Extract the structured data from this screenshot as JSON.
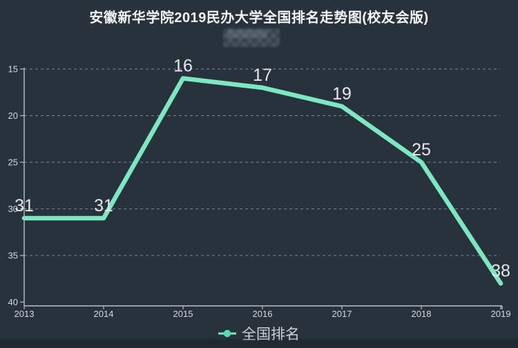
{
  "chart_data": {
    "type": "line",
    "title": "安徽新华学院2019民办大学全国排名走势图(校友会版)",
    "legend": "全国排名",
    "legend_position": "bottom-center",
    "categories": [
      "2013",
      "2014",
      "2015",
      "2016",
      "2017",
      "2018",
      "2019"
    ],
    "series": [
      {
        "name": "全国排名",
        "values": [
          31,
          31,
          16,
          17,
          19,
          25,
          38
        ]
      }
    ],
    "xlabel": "",
    "ylabel": "",
    "ylim": [
      15,
      40
    ],
    "y_ticks": [
      15,
      20,
      25,
      30,
      35,
      40
    ],
    "y_axis_inverted": true,
    "grid": "horizontal-dashed",
    "data_labels_shown": true,
    "colors": {
      "background": "#28323D",
      "series_line": "#7DE8C0",
      "legend_dot": "#5CD9AE",
      "axis_line": "#B9BFC6",
      "grid_line": "#9BA1A9",
      "tick_label": "#D5D9DD",
      "data_label": "#E6E8EB",
      "title_text": "#F3F5F7",
      "legend_text": "#CDD2D6"
    }
  },
  "watermark": {
    "present": true,
    "readable": false,
    "style": "pixelated-blur"
  }
}
